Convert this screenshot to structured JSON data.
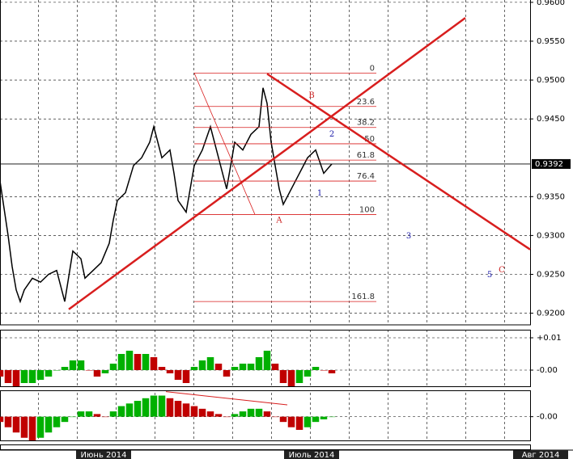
{
  "chart_data": [
    {
      "type": "line",
      "color": "#000000",
      "grid": true,
      "x": [
        0,
        2,
        3,
        4,
        5,
        6,
        8,
        10,
        12,
        14,
        16,
        18,
        20,
        21,
        23,
        25,
        27,
        28,
        29,
        31,
        33,
        35,
        37,
        38,
        40,
        42,
        43,
        44,
        46,
        48,
        50,
        52,
        54,
        56,
        58,
        60,
        62,
        64,
        65,
        66,
        67,
        68,
        69,
        70,
        72,
        74,
        76,
        78,
        80,
        82
      ],
      "values": [
        0.937,
        0.93,
        0.926,
        0.923,
        0.9215,
        0.923,
        0.9245,
        0.924,
        0.925,
        0.9255,
        0.9215,
        0.928,
        0.927,
        0.9245,
        0.9255,
        0.9265,
        0.929,
        0.932,
        0.9345,
        0.9355,
        0.939,
        0.94,
        0.942,
        0.944,
        0.94,
        0.941,
        0.938,
        0.9345,
        0.933,
        0.939,
        0.941,
        0.944,
        0.94,
        0.936,
        0.942,
        0.941,
        0.943,
        0.944,
        0.949,
        0.947,
        0.942,
        0.939,
        0.936,
        0.934,
        0.936,
        0.938,
        0.94,
        0.941,
        0.938,
        0.9392
      ],
      "xlim": [
        0,
        131
      ],
      "ylim": [
        0.9185,
        0.9603
      ],
      "yticks": [
        {
          "value": 0.96,
          "label": "0.9600"
        },
        {
          "value": 0.955,
          "label": "0.9550"
        },
        {
          "value": 0.95,
          "label": "0.9500"
        },
        {
          "value": 0.945,
          "label": "0.9450"
        },
        {
          "value": 0.935,
          "label": "0.9350"
        },
        {
          "value": 0.93,
          "label": "0.9300"
        },
        {
          "value": 0.925,
          "label": "0.9250"
        },
        {
          "value": 0.92,
          "label": "0.9200"
        }
      ],
      "xticks": [
        {
          "value": 25.6,
          "label": "Июнь 2014"
        },
        {
          "value": 77,
          "label": "Июль 2014"
        },
        {
          "value": 133.6,
          "label": "Авг 2014"
        }
      ],
      "last_price": 0.9392,
      "trendlines": [
        {
          "x": [
            17,
            115
          ],
          "y": [
            0.9205,
            0.958
          ],
          "color": "#d81e1e"
        },
        {
          "x": [
            66,
            131
          ],
          "y": [
            0.9508,
            0.9282
          ],
          "color": "#d81e1e"
        }
      ],
      "fib": {
        "x": [
          48,
          93
        ],
        "anchor_x": [
          48,
          63
        ],
        "color": "#d81e1e",
        "levels": [
          {
            "label": "0",
            "value": 0.9509
          },
          {
            "label": "23.6",
            "value": 0.9466
          },
          {
            "label": "38.2",
            "value": 0.9439
          },
          {
            "label": "50",
            "value": 0.9418
          },
          {
            "label": "61.8",
            "value": 0.9397
          },
          {
            "label": "76.4",
            "value": 0.937
          },
          {
            "label": "100",
            "value": 0.9327
          },
          {
            "label": "161.8",
            "value": 0.9215
          }
        ]
      },
      "waves": [
        {
          "label": "A",
          "x": 69,
          "y": 0.9319,
          "color": "#cc2222"
        },
        {
          "label": "B",
          "x": 77,
          "y": 0.948,
          "color": "#cc2222"
        },
        {
          "label": "1",
          "x": 79,
          "y": 0.9354,
          "color": "#1a1aa8"
        },
        {
          "label": "2",
          "x": 82,
          "y": 0.943,
          "color": "#1a1aa8"
        },
        {
          "label": "3",
          "x": 101,
          "y": 0.9299,
          "color": "#1a1aa8"
        },
        {
          "label": "5",
          "x": 121,
          "y": 0.9249,
          "color": "#1a1aa8"
        },
        {
          "label": "C",
          "x": 124,
          "y": 0.9255,
          "color": "#cc2222"
        }
      ]
    },
    {
      "type": "bar",
      "up_color": "#00b000",
      "down_color": "#c00000",
      "x": [
        0,
        2,
        4,
        6,
        8,
        10,
        12,
        14,
        16,
        18,
        20,
        22,
        24,
        26,
        28,
        30,
        32,
        34,
        36,
        38,
        40,
        42,
        44,
        46,
        48,
        50,
        52,
        54,
        56,
        58,
        60,
        62,
        64,
        66,
        68,
        70,
        72,
        74,
        76,
        78,
        80,
        82
      ],
      "values": [
        -0.002,
        -0.004,
        -0.005,
        -0.004,
        -0.004,
        -0.003,
        -0.002,
        0.0,
        0.001,
        0.003,
        0.003,
        0.0,
        -0.002,
        -0.001,
        0.002,
        0.005,
        0.006,
        0.005,
        0.005,
        0.004,
        0.001,
        -0.001,
        -0.003,
        -0.004,
        0.001,
        0.003,
        0.004,
        0.002,
        -0.002,
        0.001,
        0.002,
        0.002,
        0.004,
        0.006,
        0.002,
        -0.004,
        -0.005,
        -0.004,
        -0.002,
        0.001,
        0.0,
        -0.001
      ],
      "xlim": [
        0,
        131
      ],
      "ylim": [
        -0.005,
        0.0125
      ],
      "yticks": [
        {
          "value": 0.01,
          "label": "+0.01"
        },
        {
          "value": 0,
          "label": "-0.00"
        }
      ]
    },
    {
      "type": "bar",
      "up_color": "#00b000",
      "down_color": "#c00000",
      "x": [
        0,
        2,
        4,
        6,
        8,
        10,
        12,
        14,
        16,
        18,
        20,
        22,
        24,
        26,
        28,
        30,
        32,
        34,
        36,
        38,
        40,
        42,
        44,
        46,
        48,
        50,
        52,
        54,
        56,
        58,
        60,
        62,
        64,
        66,
        68,
        70,
        72,
        74,
        76,
        78,
        80,
        82
      ],
      "values": [
        -0.002,
        -0.004,
        -0.006,
        -0.008,
        -0.009,
        -0.008,
        -0.006,
        -0.004,
        -0.002,
        0.0,
        0.002,
        0.002,
        0.001,
        0.0,
        0.002,
        0.004,
        0.005,
        0.006,
        0.007,
        0.008,
        0.008,
        0.007,
        0.006,
        0.005,
        0.004,
        0.003,
        0.002,
        0.001,
        0.0,
        0.001,
        0.002,
        0.003,
        0.003,
        0.002,
        0.0,
        -0.002,
        -0.004,
        -0.005,
        -0.004,
        -0.002,
        -0.001,
        0.0
      ],
      "xlim": [
        0,
        131
      ],
      "ylim": [
        -0.009,
        0.01
      ],
      "yticks": [
        {
          "value": 0,
          "label": "-0.00"
        }
      ],
      "trendlines": [
        {
          "x": [
            41,
            71
          ],
          "y": [
            0.0095,
            0.0045
          ],
          "color": "#d81e1e"
        }
      ]
    }
  ]
}
